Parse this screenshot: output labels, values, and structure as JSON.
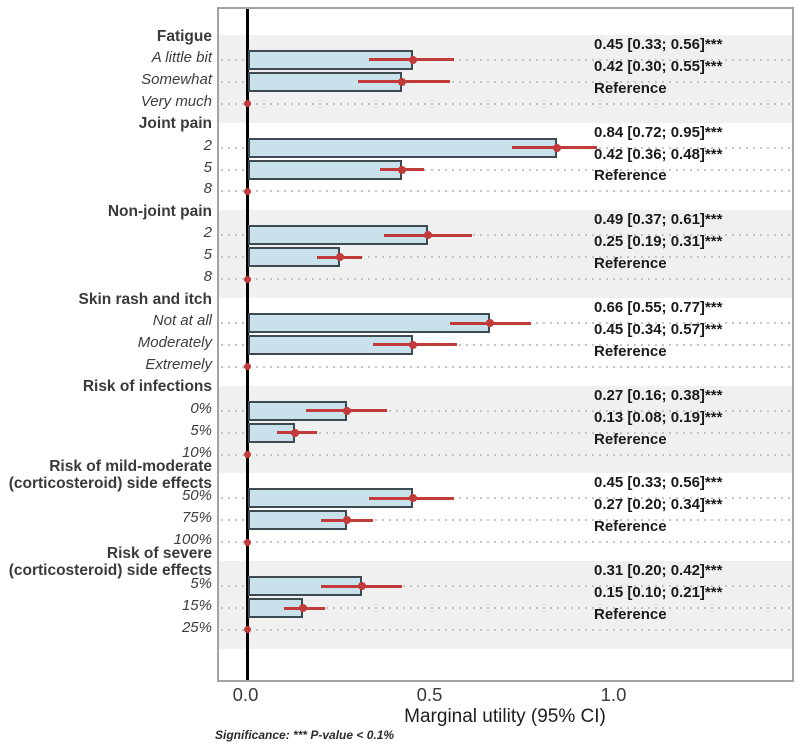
{
  "chart_data": {
    "type": "bar",
    "orientation": "horizontal",
    "xlabel": "Marginal utility (95% CI)",
    "significance_note": "Significance: *** P-value < 0.1%",
    "reference_label": "Reference",
    "xlim": [
      -0.075,
      1.49
    ],
    "x_ticks": [
      {
        "value": 0.0,
        "label": "0.0"
      },
      {
        "value": 0.5,
        "label": "0.5"
      },
      {
        "value": 1.0,
        "label": "1.0"
      }
    ],
    "grid": "dotted horizontal line per level row",
    "legend_position": "none",
    "colors": {
      "bar_fill": "#c9e1ea",
      "bar_border": "#3d4a52",
      "error_bar": "#c23b3b",
      "band": "#f0f0f0",
      "zero_line": "#000000",
      "grid_dot": "#c4c4c4",
      "panel_border": "#a3a3a3",
      "label_text": "#3a3a3a",
      "annotation_text": "#1a1a1a"
    },
    "groups": [
      {
        "label": "Fatigue",
        "levels": [
          {
            "label": "A little bit",
            "value": 0.45,
            "ci": [
              0.33,
              0.56
            ],
            "annotation": "0.45 [0.33; 0.56]***"
          },
          {
            "label": "Somewhat",
            "value": 0.42,
            "ci": [
              0.3,
              0.55
            ],
            "annotation": "0.42 [0.30; 0.55]***"
          },
          {
            "label": "Very much",
            "reference": true,
            "annotation": "Reference"
          }
        ]
      },
      {
        "label": "Joint pain",
        "levels": [
          {
            "label": "2",
            "value": 0.84,
            "ci": [
              0.72,
              0.95
            ],
            "annotation": "0.84 [0.72; 0.95]***"
          },
          {
            "label": "5",
            "value": 0.42,
            "ci": [
              0.36,
              0.48
            ],
            "annotation": "0.42 [0.36; 0.48]***"
          },
          {
            "label": "8",
            "reference": true,
            "annotation": "Reference"
          }
        ]
      },
      {
        "label": "Non-joint pain",
        "levels": [
          {
            "label": "2",
            "value": 0.49,
            "ci": [
              0.37,
              0.61
            ],
            "annotation": "0.49 [0.37; 0.61]***"
          },
          {
            "label": "5",
            "value": 0.25,
            "ci": [
              0.19,
              0.31
            ],
            "annotation": "0.25 [0.19; 0.31]***"
          },
          {
            "label": "8",
            "reference": true,
            "annotation": "Reference"
          }
        ]
      },
      {
        "label": "Skin rash and itch",
        "levels": [
          {
            "label": "Not at all",
            "value": 0.66,
            "ci": [
              0.55,
              0.77
            ],
            "annotation": "0.66 [0.55; 0.77]***"
          },
          {
            "label": "Moderately",
            "value": 0.45,
            "ci": [
              0.34,
              0.57
            ],
            "annotation": "0.45 [0.34; 0.57]***"
          },
          {
            "label": "Extremely",
            "reference": true,
            "annotation": "Reference"
          }
        ]
      },
      {
        "label": "Risk of infections",
        "levels": [
          {
            "label": "0%",
            "value": 0.27,
            "ci": [
              0.16,
              0.38
            ],
            "annotation": "0.27 [0.16; 0.38]***"
          },
          {
            "label": "5%",
            "value": 0.13,
            "ci": [
              0.08,
              0.19
            ],
            "annotation": "0.13 [0.08; 0.19]***"
          },
          {
            "label": "10%",
            "reference": true,
            "annotation": "Reference"
          }
        ]
      },
      {
        "label": "Risk of mild-moderate (corticosteroid) side effects",
        "label_lines": [
          "Risk of mild-moderate",
          "(corticosteroid) side effects"
        ],
        "levels": [
          {
            "label": "50%",
            "value": 0.45,
            "ci": [
              0.33,
              0.56
            ],
            "annotation": "0.45 [0.33; 0.56]***"
          },
          {
            "label": "75%",
            "value": 0.27,
            "ci": [
              0.2,
              0.34
            ],
            "annotation": "0.27 [0.20; 0.34]***"
          },
          {
            "label": "100%",
            "reference": true,
            "annotation": "Reference"
          }
        ]
      },
      {
        "label": "Risk of severe (corticosteroid) side effects",
        "label_lines": [
          "Risk of severe",
          "(corticosteroid) side effects"
        ],
        "levels": [
          {
            "label": "5%",
            "value": 0.31,
            "ci": [
              0.2,
              0.42
            ],
            "annotation": "0.31 [0.20; 0.42]***"
          },
          {
            "label": "15%",
            "value": 0.15,
            "ci": [
              0.1,
              0.21
            ],
            "annotation": "0.15 [0.10; 0.21]***"
          },
          {
            "label": "25%",
            "reference": true,
            "annotation": "Reference"
          }
        ]
      }
    ]
  }
}
